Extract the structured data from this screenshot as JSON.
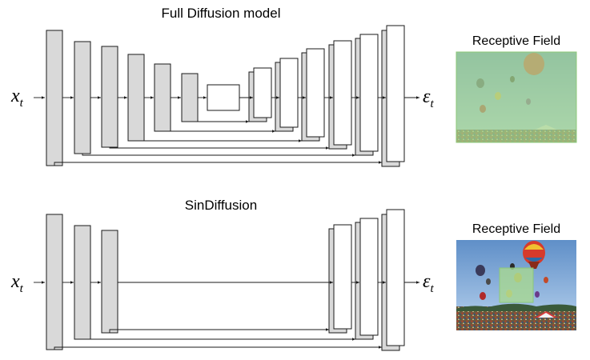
{
  "top_panel": {
    "title": "Full Diffusion model",
    "input_symbol": "x",
    "input_subscript": "t",
    "output_symbol": "ε",
    "output_subscript": "t",
    "receptive_field_label": "Receptive Field",
    "receptive_field_coverage": "full image",
    "receptive_field_color": "#a8d890"
  },
  "bottom_panel": {
    "title": "SinDiffusion",
    "input_symbol": "x",
    "input_subscript": "t",
    "output_symbol": "ε",
    "output_subscript": "t",
    "receptive_field_label": "Receptive Field",
    "receptive_field_coverage": "center patch",
    "receptive_field_color": "#a8d890"
  },
  "colors": {
    "encoder_block": "#d9d9d9",
    "decoder_block": "#ffffff",
    "outline": "#1a1a1a"
  }
}
